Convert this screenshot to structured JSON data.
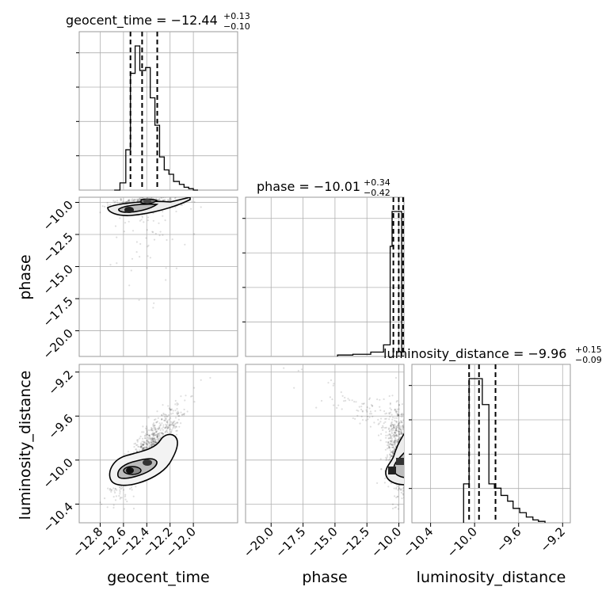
{
  "chart_data": {
    "type": "corner",
    "parameters": [
      "geocent_time",
      "phase",
      "luminosity_distance"
    ],
    "titles": [
      {
        "name": "geocent_time",
        "median": "−12.44",
        "plus": "+0.13",
        "minus": "−0.10",
        "quantiles": [
          -12.54,
          -12.44,
          -12.31
        ]
      },
      {
        "name": "phase",
        "median": "−10.01",
        "plus": "+0.34",
        "minus": "−0.42",
        "quantiles": [
          -10.43,
          -10.01,
          -9.67
        ]
      },
      {
        "name": "luminosity_distance",
        "median": "−9.96",
        "plus": "+0.15",
        "minus": "−0.09",
        "quantiles": [
          -10.05,
          -9.96,
          -9.81
        ]
      }
    ],
    "ranges": {
      "geocent_time": [
        -12.98,
        -11.62
      ],
      "phase": [
        -22.0,
        -9.6
      ],
      "luminosity_distance": [
        -10.57,
        -9.13
      ]
    },
    "ticks": {
      "geocent_time": [
        "−12.8",
        "−12.6",
        "−12.4",
        "−12.2",
        "−12.0"
      ],
      "phase_x": [
        "−20.0",
        "−17.5",
        "−15.0",
        "−12.5",
        "−10.0"
      ],
      "phase_y": [
        "−10.0",
        "−12.5",
        "−15.0",
        "−17.5",
        "−20.0"
      ],
      "luminosity_distance_x": [
        "−10.4",
        "−10.0",
        "−9.6",
        "−9.2"
      ],
      "luminosity_distance_y": [
        "−9.2",
        "−9.6",
        "−10.0",
        "−10.4"
      ]
    },
    "hist_geocent_time": {
      "edges": [
        -12.68,
        -12.63,
        -12.58,
        -12.54,
        -12.5,
        -12.46,
        -12.41,
        -12.37,
        -12.33,
        -12.29,
        -12.25,
        -12.21,
        -12.17,
        -12.12,
        -12.08,
        -12.04,
        -12.0,
        -11.96
      ],
      "counts": [
        0,
        0.05,
        0.28,
        0.81,
        1.0,
        0.83,
        0.85,
        0.64,
        0.45,
        0.23,
        0.14,
        0.11,
        0.06,
        0.04,
        0.02,
        0.01,
        0.0
      ]
    },
    "hist_phase": {
      "edges": [
        -14.8,
        -13.6,
        -12.2,
        -11.2,
        -10.68,
        -10.53,
        -10.38,
        -10.23,
        -10.08,
        -9.93,
        -9.78
      ],
      "counts": [
        0.01,
        0.015,
        0.03,
        0.08,
        0.76,
        1.0,
        1.0,
        1.0,
        1.0,
        1.0
      ]
    },
    "hist_luminosity_distance": {
      "edges": [
        -10.1,
        -10.05,
        -9.99,
        -9.93,
        -9.87,
        -9.82,
        -9.76,
        -9.7,
        -9.65,
        -9.59,
        -9.53,
        -9.47,
        -9.42,
        -9.36
      ],
      "counts": [
        0.27,
        1.0,
        1.0,
        0.82,
        0.27,
        0.24,
        0.19,
        0.15,
        0.1,
        0.07,
        0.04,
        0.02,
        0.01
      ]
    },
    "xlabels": [
      "geocent_time",
      "phase",
      "luminosity_distance"
    ],
    "ylabels": [
      "phase",
      "luminosity_distance"
    ],
    "grid": true
  }
}
